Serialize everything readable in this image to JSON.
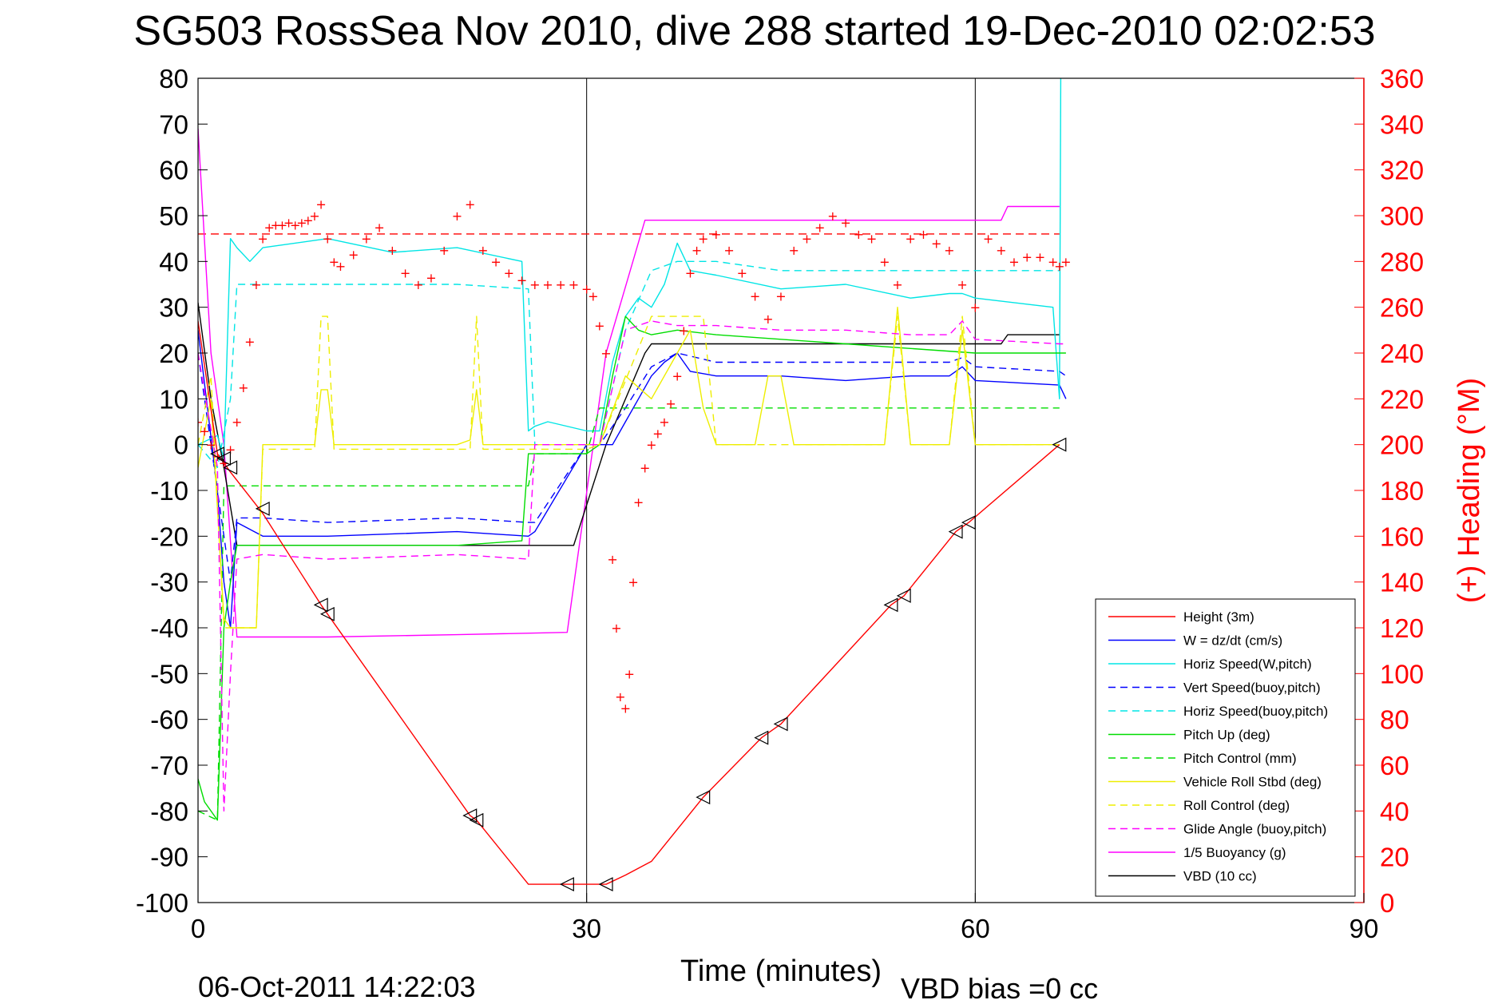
{
  "chart_data": {
    "type": "line",
    "title": "SG503 RossSea Nov 2010, dive 288 started 19-Dec-2010 02:02:53",
    "xlabel": "Time (minutes)",
    "ylabel_right": "(+) Heading (°M)",
    "footer_date": "06-Oct-2011 14:22:03",
    "footer_vbd": "VBD bias =0 cc",
    "xlim": [
      0,
      90
    ],
    "ylim": [
      -100,
      80
    ],
    "ylim_right": [
      0,
      360
    ],
    "x_ticks": [
      0,
      30,
      60,
      90
    ],
    "y_ticks": [
      80,
      70,
      60,
      50,
      40,
      30,
      20,
      10,
      0,
      -10,
      -20,
      -30,
      -40,
      -50,
      -60,
      -70,
      -80,
      -90,
      -100
    ],
    "y_ticks_right": [
      360,
      340,
      320,
      300,
      280,
      260,
      240,
      220,
      200,
      180,
      160,
      140,
      120,
      100,
      80,
      60,
      40,
      20,
      0
    ],
    "grid": "vertical lines at 30 and 60",
    "legend_position": "bottom-right",
    "heading_mean_line": 46,
    "colors": {
      "red": "#ff0000",
      "blue": "#0000ff",
      "cyan": "#00e5e5",
      "green": "#00dd00",
      "yellow": "#eeee00",
      "magenta": "#ff00ff",
      "black": "#000000"
    },
    "series": [
      {
        "name": "Height (3m)",
        "color": "#ff0000",
        "style": "solid",
        "x": [
          0,
          1.5,
          2.5,
          5,
          9.5,
          10,
          21,
          21.5,
          25.5,
          28.5,
          31.5,
          33,
          35,
          39,
          43.5,
          45,
          53.5,
          54.5,
          58.5,
          59.5,
          66.5
        ],
        "y": [
          27,
          -2,
          -6,
          -15,
          -35,
          -37,
          -81,
          -82,
          -96,
          -96,
          -96,
          -94,
          -91,
          -77,
          -64,
          -61,
          -35,
          -33,
          -19,
          -17,
          0
        ]
      },
      {
        "name": "W = dz/dt (cm/s)",
        "color": "#0000ff",
        "style": "solid",
        "x": [
          0,
          1.5,
          2,
          2.5,
          3,
          5,
          10,
          20,
          25.5,
          26,
          30,
          31,
          32,
          33,
          34,
          35,
          36,
          37,
          38,
          40,
          45,
          50,
          55,
          58,
          59,
          60,
          66.5,
          67
        ],
        "y": [
          25,
          -10,
          -30,
          -40,
          -17,
          -20,
          -20,
          -19,
          -20,
          -19,
          0,
          0,
          0,
          5,
          10,
          15,
          18,
          20,
          16,
          15,
          15,
          14,
          15,
          15,
          17,
          14,
          13,
          10
        ]
      },
      {
        "name": "Horiz Speed(W,pitch)",
        "color": "#00e5e5",
        "style": "solid",
        "x": [
          0,
          1.5,
          2,
          2.5,
          3,
          4,
          5,
          10,
          15,
          20,
          25,
          25.5,
          26,
          27,
          30,
          31,
          32,
          33,
          34,
          35,
          36,
          37,
          38,
          40,
          45,
          50,
          55,
          58,
          59,
          60,
          66,
          66.5,
          66.6
        ],
        "y": [
          0,
          2,
          -3,
          45,
          43,
          40,
          43,
          45,
          42,
          43,
          40,
          3,
          4,
          5,
          3,
          3,
          18,
          28,
          32,
          30,
          35,
          44,
          38,
          37,
          34,
          35,
          32,
          33,
          33,
          32,
          30,
          10,
          80
        ]
      },
      {
        "name": "Vert Speed(buoy,pitch)",
        "color": "#0000ff",
        "style": "dashed",
        "x": [
          0,
          1.5,
          2.5,
          3,
          5,
          10,
          20,
          25.5,
          26,
          30,
          31,
          33,
          35,
          37,
          40,
          45,
          50,
          55,
          58,
          59,
          60,
          66.5,
          67
        ],
        "y": [
          20,
          -10,
          -30,
          -16,
          -16,
          -17,
          -16,
          -17,
          -17,
          0,
          0,
          8,
          17,
          20,
          18,
          18,
          18,
          18,
          18,
          19,
          17,
          16,
          15
        ]
      },
      {
        "name": "Horiz Speed(buoy,pitch)",
        "color": "#00e5e5",
        "style": "dashed",
        "x": [
          0,
          1.5,
          2.5,
          3,
          5,
          10,
          20,
          25.5,
          26,
          30,
          31,
          33,
          35,
          37,
          40,
          45,
          50,
          55,
          60,
          66.5
        ],
        "y": [
          0,
          -5,
          10,
          35,
          35,
          35,
          35,
          34,
          0,
          0,
          0,
          25,
          38,
          40,
          40,
          38,
          38,
          38,
          38,
          38
        ]
      },
      {
        "name": "Pitch Up (deg)",
        "color": "#00dd00",
        "style": "solid",
        "x": [
          0,
          0.5,
          1,
          1.5,
          2,
          2.5,
          3,
          5,
          10,
          20,
          25,
          25.5,
          26,
          30,
          31,
          32,
          33,
          34,
          35,
          37,
          40,
          45,
          50,
          55,
          60,
          66.5,
          67
        ],
        "y": [
          -73,
          -78,
          -80,
          -82,
          -40,
          -30,
          -22,
          -22,
          -22,
          -22,
          -21,
          -2,
          -2,
          -2,
          0,
          15,
          28,
          25,
          24,
          25,
          24,
          23,
          22,
          21,
          20,
          20,
          20
        ]
      },
      {
        "name": "Pitch Control (mm)",
        "color": "#00dd00",
        "style": "dashed",
        "x": [
          0,
          1.5,
          2,
          3,
          5,
          10,
          20,
          25.5,
          26,
          30,
          31,
          35,
          40,
          50,
          60,
          66.5
        ],
        "y": [
          -80,
          -82,
          -9,
          -9,
          -9,
          -9,
          -9,
          -9,
          -2,
          -2,
          8,
          8,
          8,
          8,
          8,
          8
        ]
      },
      {
        "name": "Vehicle Roll Stbd (deg)",
        "color": "#eeee00",
        "style": "solid",
        "x": [
          0,
          1,
          2,
          2.5,
          3,
          4.5,
          5,
          9,
          9.5,
          10,
          10.5,
          11,
          20,
          21,
          21.5,
          22,
          25,
          30,
          31,
          33,
          35,
          37,
          38,
          39,
          40,
          43,
          44,
          45,
          46,
          53,
          54,
          55,
          58,
          59,
          60,
          66.5
        ],
        "y": [
          -5,
          10,
          -38,
          -40,
          -40,
          -40,
          0,
          0,
          12,
          12,
          0,
          0,
          0,
          1,
          12,
          0,
          0,
          0,
          0,
          15,
          10,
          20,
          25,
          8,
          0,
          0,
          15,
          15,
          0,
          0,
          30,
          0,
          0,
          25,
          0,
          0
        ]
      },
      {
        "name": "Roll Control (deg)",
        "color": "#eeee00",
        "style": "dashed",
        "x": [
          0,
          1,
          2,
          3,
          4.5,
          5,
          9,
          9.5,
          10,
          10.5,
          11,
          20,
          21,
          21.5,
          22,
          25,
          30,
          31,
          35,
          37,
          38,
          39,
          40,
          53,
          54,
          55,
          58,
          59,
          60,
          66.5
        ],
        "y": [
          0,
          15,
          -40,
          -40,
          -40,
          -1,
          -1,
          28,
          28,
          -1,
          -1,
          -1,
          -1,
          28,
          -1,
          -1,
          -1,
          0,
          28,
          28,
          28,
          28,
          0,
          0,
          28,
          0,
          0,
          28,
          0,
          0
        ]
      },
      {
        "name": "Glide Angle (buoy,pitch)",
        "color": "#ff00ff",
        "style": "dashed",
        "x": [
          0,
          1.5,
          2,
          2.5,
          3,
          5,
          10,
          20,
          25.5,
          26,
          30,
          31,
          33,
          35,
          37,
          40,
          45,
          50,
          55,
          58,
          59,
          60,
          66.5,
          67
        ],
        "y": [
          20,
          -5,
          -80,
          -50,
          -25,
          -24,
          -25,
          -24,
          -25,
          0,
          0,
          0,
          25,
          27,
          26,
          26,
          25,
          25,
          24,
          24,
          27,
          23,
          22,
          22
        ]
      },
      {
        "name": "1/5 Buoyancy (g)",
        "color": "#ff00ff",
        "style": "solid",
        "x": [
          0,
          1,
          2,
          3,
          4,
          10,
          20,
          28.5,
          31.5,
          34.5,
          35,
          40,
          50,
          62,
          62.5,
          66.5
        ],
        "y": [
          69,
          20,
          0,
          -42,
          -42,
          -42,
          -41.5,
          -41,
          20,
          49,
          49,
          49,
          49,
          49,
          52,
          52
        ]
      },
      {
        "name": "VBD (10 cc)",
        "color": "#000000",
        "style": "solid",
        "x": [
          0,
          1,
          2,
          3,
          4,
          10,
          20,
          26,
          29,
          31.5,
          34.5,
          35,
          40,
          50,
          62,
          62.5,
          66.5
        ],
        "y": [
          31,
          10,
          -5,
          -22,
          -22,
          -22,
          -22,
          -22,
          -22,
          0,
          20,
          22,
          22,
          22,
          22,
          24,
          24
        ]
      }
    ],
    "heading_series": {
      "name": "Heading",
      "color": "#ff0000",
      "marker": "+",
      "x": [
        0,
        0.5,
        1,
        1.5,
        2,
        2.5,
        3,
        3.5,
        4,
        4.5,
        5,
        5.5,
        6,
        6.5,
        7,
        7.5,
        8,
        8.5,
        9,
        9.5,
        10,
        10.5,
        11,
        12,
        13,
        14,
        15,
        16,
        17,
        18,
        19,
        20,
        21,
        22,
        23,
        24,
        25,
        26,
        27,
        28,
        29,
        30,
        30.5,
        31,
        31.5,
        32,
        32.3,
        32.6,
        33,
        33.3,
        33.6,
        34,
        34.5,
        35,
        35.5,
        36,
        36.5,
        37,
        37.5,
        38,
        38.5,
        39,
        40,
        41,
        42,
        43,
        44,
        45,
        46,
        47,
        48,
        49,
        50,
        51,
        52,
        53,
        54,
        55,
        56,
        57,
        58,
        59,
        60,
        61,
        62,
        63,
        64,
        65,
        66,
        66.5,
        67
      ],
      "y": [
        210,
        206,
        200,
        195,
        192,
        198,
        210,
        225,
        245,
        270,
        290,
        295,
        296,
        296,
        297,
        296,
        297,
        298,
        300,
        305,
        290,
        280,
        278,
        283,
        290,
        295,
        285,
        275,
        270,
        273,
        285,
        300,
        305,
        285,
        280,
        275,
        272,
        270,
        270,
        270,
        270,
        268,
        265,
        252,
        240,
        150,
        120,
        90,
        85,
        100,
        140,
        175,
        190,
        200,
        205,
        210,
        218,
        230,
        250,
        275,
        285,
        290,
        292,
        285,
        275,
        265,
        255,
        265,
        285,
        290,
        295,
        300,
        297,
        292,
        290,
        280,
        270,
        290,
        292,
        288,
        285,
        270,
        260,
        290,
        285,
        280,
        282,
        282,
        280,
        278,
        280
      ]
    },
    "waypoints": {
      "x": [
        1.5,
        2,
        2.5,
        5,
        9.5,
        10,
        21,
        21.5,
        28.5,
        31.5,
        39,
        43.5,
        45,
        53.5,
        54.5,
        58.5,
        59.5,
        66.5
      ],
      "y": [
        -2,
        -3,
        -5,
        -14,
        -35,
        -37,
        -81,
        -82,
        -96,
        -96,
        -77,
        -64,
        -61,
        -35,
        -33,
        -19,
        -17,
        0
      ]
    }
  }
}
